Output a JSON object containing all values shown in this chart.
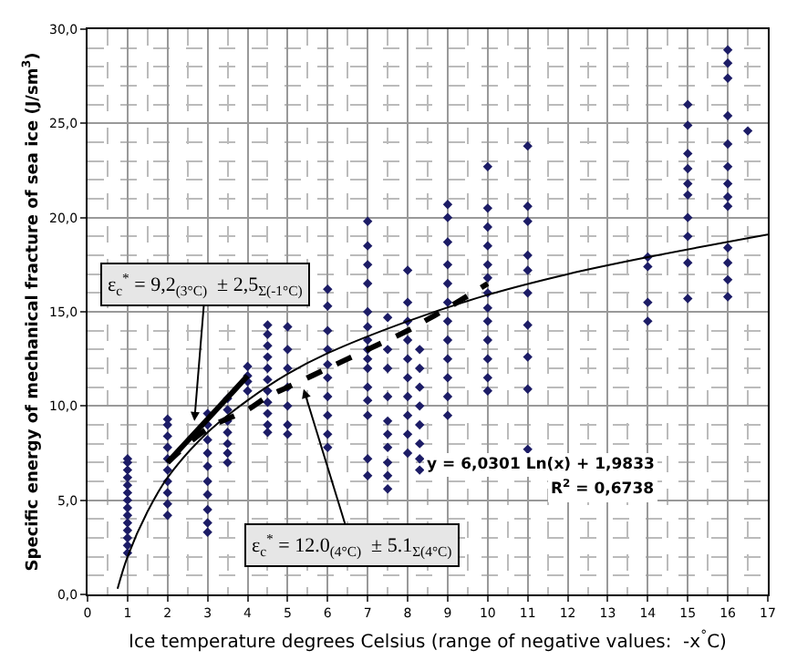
{
  "chart_data": {
    "type": "scatter",
    "xlabel": "Ice temperature degrees Celsius (range of negative values:  -x$^{°}$C)",
    "ylabel": "Specific energy of mechanical fracture of sea ice (J/sm$^{3}$)",
    "xlim": [
      0,
      17
    ],
    "xticks": [
      0,
      1,
      2,
      3,
      4,
      5,
      6,
      7,
      8,
      9,
      10,
      11,
      12,
      13,
      14,
      15,
      16,
      17
    ],
    "ylim": [
      0,
      30
    ],
    "yticks": [
      {
        "value": 0,
        "label": "0,0"
      },
      {
        "value": 5,
        "label": "5,0"
      },
      {
        "value": 10,
        "label": "10,0"
      },
      {
        "value": 15,
        "label": "15,0"
      },
      {
        "value": 20,
        "label": "20,0"
      },
      {
        "value": 25,
        "label": "25,0"
      },
      {
        "value": 30,
        "label": "30,0"
      }
    ],
    "grid": true,
    "series": [
      {
        "color": "#1c1c66",
        "marker": "diamond",
        "x": [
          1,
          1,
          1,
          1,
          1,
          1,
          1,
          1,
          1,
          1,
          1,
          1,
          1,
          1,
          2,
          2,
          2,
          2,
          2,
          2,
          2,
          2,
          2,
          2,
          3,
          3,
          3,
          3,
          3,
          3,
          3,
          3,
          3,
          3,
          3.5,
          3.5,
          3.5,
          3.5,
          3.5,
          3.5,
          3.5,
          4,
          4,
          4,
          4,
          4.5,
          4.5,
          4.5,
          4.5,
          4.5,
          4.5,
          4.5,
          4.5,
          4.5,
          4.5,
          4.5,
          5,
          5,
          5,
          5,
          5,
          5,
          5,
          6,
          6,
          6,
          6,
          6,
          6,
          6,
          6,
          6,
          6,
          7,
          7,
          7,
          7,
          7,
          7,
          7,
          7,
          7,
          7,
          7,
          7,
          7,
          7,
          7,
          7.5,
          7.5,
          7.5,
          7.5,
          7.5,
          7.5,
          7.5,
          7.5,
          7.5,
          7.5,
          8,
          8,
          8,
          8,
          8,
          8,
          8,
          8,
          8,
          8,
          8.3,
          8.3,
          8.3,
          8.3,
          8.3,
          8.3,
          8.3,
          8.3,
          9,
          9,
          9,
          9,
          9,
          9,
          9,
          9,
          9,
          9,
          9,
          9,
          10,
          10,
          10,
          10,
          10,
          10,
          10,
          10,
          10,
          10,
          10,
          10,
          10,
          11,
          11,
          11,
          11,
          11,
          11,
          11,
          11,
          11,
          11,
          14,
          14,
          14,
          14,
          15,
          15,
          15,
          15,
          15,
          15,
          15,
          15,
          15,
          15,
          16,
          16,
          16,
          16,
          16,
          16,
          16,
          16,
          16,
          16,
          16,
          16,
          16,
          16.5
        ],
        "values": [
          2.2,
          2.6,
          3.0,
          3.4,
          3.8,
          4.2,
          4.6,
          5.0,
          5.4,
          5.8,
          6.2,
          6.6,
          7.0,
          7.2,
          4.2,
          4.8,
          5.4,
          6.0,
          6.6,
          7.2,
          7.8,
          8.4,
          9.0,
          9.3,
          3.3,
          3.8,
          4.5,
          5.3,
          6.0,
          6.8,
          7.5,
          8.2,
          9.0,
          9.6,
          7.0,
          7.5,
          8.0,
          8.6,
          9.2,
          9.8,
          10.4,
          10.8,
          11.3,
          11.6,
          12.1,
          8.6,
          9.0,
          9.6,
          10.2,
          10.8,
          11.4,
          12.0,
          12.6,
          13.2,
          13.8,
          14.3,
          8.5,
          9.0,
          10.0,
          11.0,
          12.0,
          13.0,
          14.2,
          7.8,
          8.5,
          9.5,
          10.5,
          11.5,
          12.2,
          13.0,
          14.0,
          15.3,
          16.2,
          6.3,
          7.2,
          9.5,
          10.3,
          11.0,
          12.0,
          12.5,
          13.0,
          13.5,
          14.2,
          15.0,
          16.5,
          17.5,
          18.5,
          19.8,
          5.6,
          6.3,
          7.0,
          7.8,
          8.5,
          9.2,
          10.5,
          12.0,
          13.0,
          14.7,
          7.5,
          8.5,
          9.5,
          10.5,
          11.5,
          12.5,
          13.5,
          14.5,
          15.5,
          17.2,
          6.6,
          7.2,
          8.0,
          9.0,
          10.0,
          11.0,
          12.0,
          13.0,
          9.5,
          10.5,
          11.5,
          12.5,
          13.5,
          14.5,
          15.5,
          16.5,
          17.5,
          18.7,
          20.0,
          20.7,
          10.8,
          11.5,
          12.5,
          13.5,
          14.5,
          15.2,
          16.0,
          16.8,
          17.5,
          18.5,
          19.5,
          20.5,
          22.7,
          7.7,
          10.9,
          12.6,
          14.3,
          16.0,
          17.2,
          18.0,
          19.8,
          20.6,
          23.8,
          14.5,
          15.5,
          17.4,
          17.9,
          15.7,
          17.6,
          19.0,
          20.0,
          21.2,
          21.8,
          22.6,
          23.4,
          24.9,
          26.0,
          15.8,
          16.7,
          17.6,
          18.4,
          20.6,
          21.1,
          21.8,
          22.7,
          23.9,
          25.4,
          27.4,
          28.2,
          28.9,
          24.6
        ]
      },
      {
        "type": "line",
        "color": "#000000",
        "marker": "none",
        "line_style": "solid",
        "x": [
          0.75,
          1,
          1.5,
          2,
          3,
          4,
          5,
          6,
          8,
          10,
          12,
          14,
          17
        ],
        "values": [
          0.3,
          2.0,
          4.4,
          6.2,
          8.6,
          10.3,
          11.7,
          12.8,
          14.5,
          15.9,
          17.0,
          17.9,
          19.1
        ]
      },
      {
        "type": "line",
        "color": "#000000",
        "marker": "none",
        "line_style": "solid",
        "x": [
          2,
          3,
          4
        ],
        "values": [
          7.0,
          9.3,
          11.6
        ]
      },
      {
        "type": "line",
        "color": "#000000",
        "marker": "none",
        "line_style": "dashed",
        "x": [
          2,
          3,
          4,
          4.5,
          5,
          6,
          7,
          8,
          8.5,
          9,
          10
        ],
        "values": [
          7.0,
          8.8,
          9.8,
          10.5,
          11.0,
          12.0,
          13.0,
          14.0,
          14.6,
          15.2,
          16.5
        ]
      }
    ],
    "annotations": [
      {
        "text": "ε$_{c}$$^{*}$ = 9,2$_{(3°C)}$  ± 2,5$_{Σ(-1°C)}$",
        "x": 2.67,
        "y": 9.2
      },
      {
        "text": "ε$_{c}$$^{*}$ = 12.0$_{(4°C)}$  ± 5.1$_{Σ(4°C)}$",
        "x": 5.4,
        "y": 10.9
      },
      "y = 6,0301 Ln(x) + 1,9833",
      "R$^{2}$ = 0,6738"
    ]
  }
}
